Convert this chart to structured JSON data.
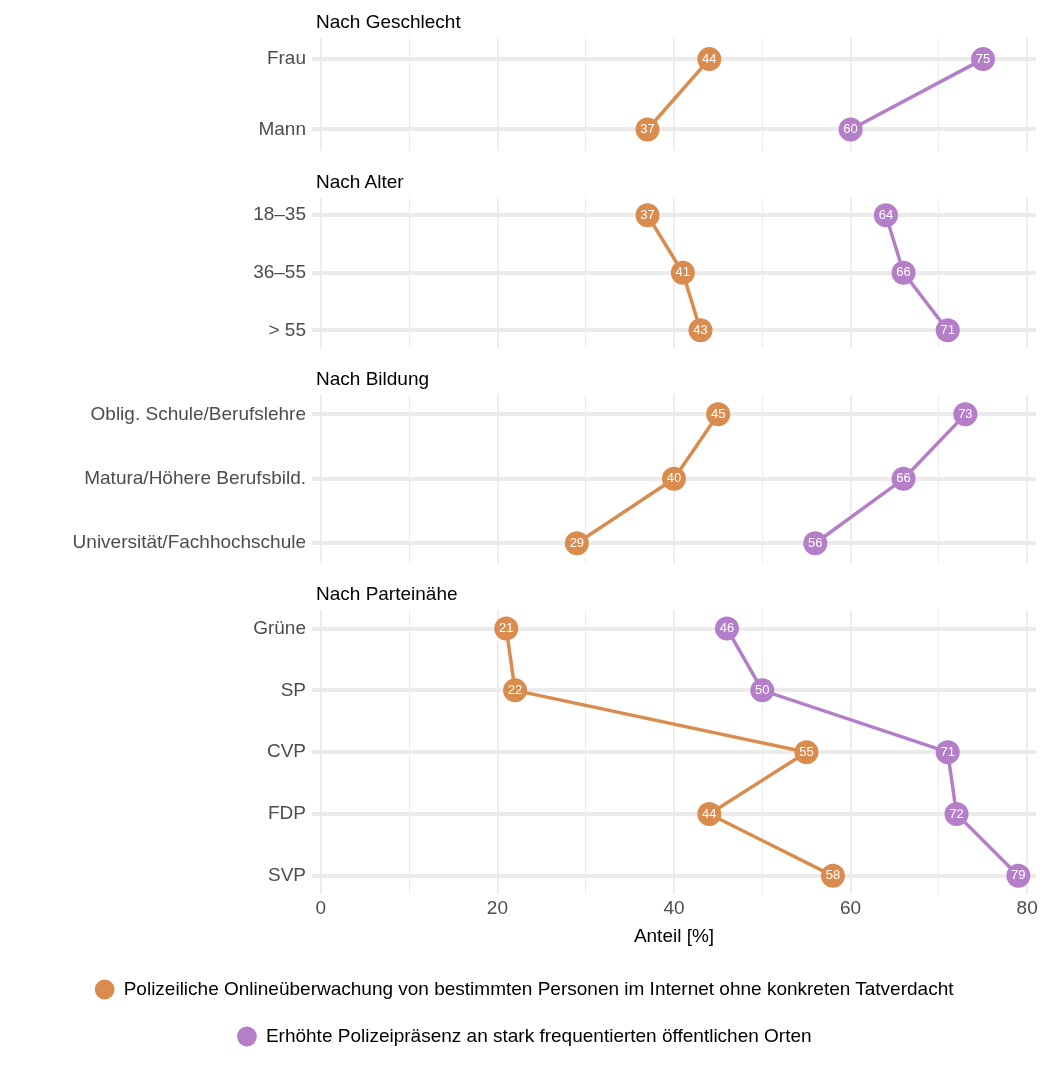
{
  "chart_data": [
    {
      "type": "line",
      "title": "Nach Geschlecht",
      "orientation": "horizontal",
      "categories": [
        "Frau",
        "Mann"
      ],
      "series": [
        {
          "color": "#da8b4e",
          "values": [
            44,
            37
          ]
        },
        {
          "color": "#b57ec8",
          "values": [
            75,
            60
          ]
        }
      ],
      "xlim": [
        -1,
        81
      ],
      "xticks": [
        0,
        {
          "value": 10,
          "label": null
        },
        20,
        {
          "value": 30,
          "label": null
        },
        40,
        {
          "value": 50,
          "label": null
        },
        60,
        {
          "value": 70,
          "label": null
        },
        80
      ],
      "tick_labels": "y",
      "grid": true,
      "marker": "circle",
      "data_labels": true
    },
    {
      "type": "line",
      "title": "Nach Alter",
      "orientation": "horizontal",
      "categories": [
        "18–35",
        "36–55",
        "> 55"
      ],
      "series": [
        {
          "color": "#da8b4e",
          "values": [
            37,
            41,
            43
          ]
        },
        {
          "color": "#b57ec8",
          "values": [
            64,
            66,
            71
          ]
        }
      ],
      "xlim": [
        -1,
        81
      ],
      "xticks": [
        0,
        {
          "value": 10,
          "label": null
        },
        20,
        {
          "value": 30,
          "label": null
        },
        40,
        {
          "value": 50,
          "label": null
        },
        60,
        {
          "value": 70,
          "label": null
        },
        80
      ],
      "tick_labels": "y",
      "grid": true,
      "marker": "circle",
      "data_labels": true
    },
    {
      "type": "line",
      "title": "Nach Bildung",
      "orientation": "horizontal",
      "categories": [
        "Oblig. Schule/Berufslehre",
        "Matura/Höhere Berufsbild.",
        "Universität/Fachhochschule"
      ],
      "series": [
        {
          "color": "#da8b4e",
          "values": [
            45,
            40,
            29
          ]
        },
        {
          "color": "#b57ec8",
          "values": [
            73,
            66,
            56
          ]
        }
      ],
      "xlim": [
        -1,
        81
      ],
      "xticks": [
        0,
        {
          "value": 10,
          "label": null
        },
        20,
        {
          "value": 30,
          "label": null
        },
        40,
        {
          "value": 50,
          "label": null
        },
        60,
        {
          "value": 70,
          "label": null
        },
        80
      ],
      "tick_labels": "y",
      "grid": true,
      "marker": "circle",
      "data_labels": true
    },
    {
      "type": "line",
      "title": "Nach Parteinähe",
      "orientation": "horizontal",
      "xlabel": "Anteil [%]",
      "categories": [
        "Grüne",
        "SP",
        "CVP",
        "FDP",
        "SVP"
      ],
      "series": [
        {
          "name": "Polizeiliche Onlineüberwachung von bestimmten Personen im Internet ohne konkreten Tatverdacht",
          "color": "#da8b4e",
          "values": [
            21,
            22,
            55,
            44,
            58
          ]
        },
        {
          "name": "Erhöhte Polizeipräsenz an stark frequentierten öffentlichen Orten",
          "color": "#b57ec8",
          "values": [
            46,
            50,
            71,
            72,
            79
          ]
        }
      ],
      "xlim": [
        -1,
        81
      ],
      "xticks": [
        0,
        {
          "value": 10,
          "label": null
        },
        20,
        {
          "value": 30,
          "label": null
        },
        40,
        {
          "value": 50,
          "label": null
        },
        60,
        {
          "value": 70,
          "label": null
        },
        80
      ],
      "grid": true,
      "marker": "circle",
      "data_labels": true,
      "legend": "bottom"
    }
  ]
}
